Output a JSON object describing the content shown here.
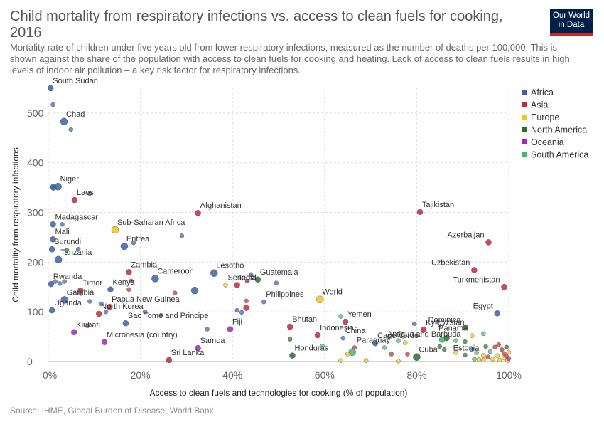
{
  "header": {
    "title": "Child mortality from respiratory infections vs. access to clean fuels for cooking, 2016",
    "subtitle": "Mortality rate of children under five years old from lower respiratory infections, measured as the number of deaths per 100,000. This is shown against the share of the population with access to clean fuels for cooking and heating. Lack of access to clean fuels results in high levels of indoor air pollution – a key risk factor for respiratory infections.",
    "logo_line1": "Our World",
    "logo_line2": "in Data"
  },
  "footer": {
    "source": "Source: IHME, Global Burden of Disease; World Bank"
  },
  "chart_data": {
    "type": "scatter",
    "title": "Child mortality from respiratory infections vs. access to clean fuels for cooking, 2016",
    "xlabel": "Access to clean fuels and technologies for cooking (% of population)",
    "ylabel": "Child mortality from respiratory infections",
    "xlim": [
      0,
      100
    ],
    "ylim": [
      0,
      550
    ],
    "x_ticks": [
      0,
      20,
      40,
      60,
      80,
      100
    ],
    "x_tick_labels": [
      "0%",
      "20%",
      "40%",
      "60%",
      "80%",
      "100%"
    ],
    "y_ticks": [
      0,
      100,
      200,
      300,
      400,
      500
    ],
    "y_tick_labels": [
      "0",
      "100",
      "200",
      "300",
      "400",
      "500"
    ],
    "grid": true,
    "legend_position": "right",
    "series": [
      {
        "name": "Africa",
        "color": "#3a62a8"
      },
      {
        "name": "Asia",
        "color": "#c7283a"
      },
      {
        "name": "Europe",
        "color": "#f4c514"
      },
      {
        "name": "North America",
        "color": "#2e6b2f"
      },
      {
        "name": "Oceania",
        "color": "#9b2ab5"
      },
      {
        "name": "South America",
        "color": "#3fba6d"
      }
    ],
    "points": [
      {
        "label": "South Sudan",
        "x": 0.5,
        "y": 550,
        "s": "Africa"
      },
      {
        "x": 1.0,
        "y": 517,
        "s": "Africa",
        "size": "sm"
      },
      {
        "label": "Chad",
        "x": 3.4,
        "y": 483,
        "s": "Africa",
        "size": "lg"
      },
      {
        "x": 4.9,
        "y": 467,
        "s": "Africa",
        "size": "sm"
      },
      {
        "label": "Niger",
        "x": 2.1,
        "y": 352,
        "s": "Africa",
        "size": "lg"
      },
      {
        "x": 1.1,
        "y": 350,
        "s": "Africa"
      },
      {
        "x": 1.0,
        "y": 353,
        "s": "Africa",
        "size": "sm"
      },
      {
        "x": 9.0,
        "y": 338,
        "s": "Africa",
        "size": "sm"
      },
      {
        "label": "Laos",
        "x": 5.7,
        "y": 325,
        "s": "Asia"
      },
      {
        "label": "Afghanistan",
        "x": 32.5,
        "y": 299,
        "s": "Asia"
      },
      {
        "label": "Tajikistan",
        "x": 80.7,
        "y": 301,
        "s": "Asia"
      },
      {
        "label": "Madagascar",
        "x": 1.0,
        "y": 276,
        "s": "Africa"
      },
      {
        "x": 3.0,
        "y": 276,
        "s": "Africa",
        "size": "sm"
      },
      {
        "label": "Sub-Saharan Africa",
        "x": 14.5,
        "y": 265,
        "s": "Europe",
        "size": "lg"
      },
      {
        "x": 29.0,
        "y": 253,
        "s": "Africa",
        "size": "sm"
      },
      {
        "label": "Mali",
        "x": 1.0,
        "y": 246,
        "s": "Africa"
      },
      {
        "label": "Azerbaijan",
        "x": 95.6,
        "y": 240,
        "s": "Asia"
      },
      {
        "label": "Eritrea",
        "x": 16.5,
        "y": 232,
        "s": "Africa",
        "size": "lg"
      },
      {
        "x": 18.5,
        "y": 239,
        "s": "Africa",
        "size": "sm"
      },
      {
        "label": "Burundi",
        "x": 0.8,
        "y": 226,
        "s": "Africa"
      },
      {
        "x": 4.0,
        "y": 224,
        "s": "North America",
        "size": "sm"
      },
      {
        "x": 6.5,
        "y": 226,
        "s": "Africa",
        "size": "sm"
      },
      {
        "label": "Tanzania",
        "x": 2.2,
        "y": 205,
        "s": "Africa",
        "size": "lg"
      },
      {
        "label": "Uzbekistan",
        "x": 92.5,
        "y": 184,
        "s": "Asia"
      },
      {
        "label": "Zambia",
        "x": 17.5,
        "y": 180,
        "s": "Asia"
      },
      {
        "label": "Cameroon",
        "x": 23.2,
        "y": 167,
        "s": "Africa",
        "size": "lg"
      },
      {
        "label": "Lesotho",
        "x": 36.0,
        "y": 178,
        "s": "Africa",
        "size": "lg"
      },
      {
        "label": "Rwanda",
        "x": 0.6,
        "y": 156,
        "s": "Africa"
      },
      {
        "x": 1.5,
        "y": 161,
        "s": "Africa",
        "size": "sm"
      },
      {
        "x": 2.5,
        "y": 157,
        "s": "Africa",
        "size": "sm"
      },
      {
        "x": 3.5,
        "y": 161,
        "s": "Africa",
        "size": "sm"
      },
      {
        "label": "Guatemala",
        "x": 45.5,
        "y": 165,
        "s": "North America"
      },
      {
        "x": 44.0,
        "y": 175,
        "s": "Africa",
        "size": "sm"
      },
      {
        "label": "India",
        "x": 41.0,
        "y": 154,
        "s": "Asia"
      },
      {
        "x": 43.2,
        "y": 162,
        "s": "Asia",
        "size": "sm"
      },
      {
        "x": 49.5,
        "y": 158,
        "s": "Africa",
        "size": "sm"
      },
      {
        "label": "Senegal",
        "x": 38.5,
        "y": 154,
        "s": "Europe",
        "size": "sm"
      },
      {
        "x": 18.0,
        "y": 162,
        "s": "Asia",
        "size": "sm"
      },
      {
        "x": 17.5,
        "y": 145,
        "s": "Asia",
        "size": "sm"
      },
      {
        "x": 27.5,
        "y": 138,
        "s": "Asia",
        "size": "sm"
      },
      {
        "x": 31.8,
        "y": 143,
        "s": "Africa",
        "size": "lg"
      },
      {
        "label": "Turkmenistan",
        "x": 99.0,
        "y": 150,
        "s": "Asia"
      },
      {
        "label": "Kenya",
        "x": 13.5,
        "y": 145,
        "s": "Africa"
      },
      {
        "label": "Timor",
        "x": 7.0,
        "y": 143,
        "s": "Asia"
      },
      {
        "x": 7.0,
        "y": 137,
        "s": "Africa",
        "size": "sm"
      },
      {
        "label": "Gambia",
        "x": 3.5,
        "y": 124,
        "s": "Africa",
        "size": "lg"
      },
      {
        "x": 9.0,
        "y": 121,
        "s": "Africa",
        "size": "sm"
      },
      {
        "x": 11.5,
        "y": 116,
        "s": "Africa",
        "size": "sm"
      },
      {
        "label": "Papua New Guinea",
        "x": 13.3,
        "y": 110,
        "s": "Asia"
      },
      {
        "label": "Philippines",
        "x": 46.8,
        "y": 120,
        "s": "Africa",
        "size": "sm"
      },
      {
        "x": 43.0,
        "y": 122,
        "s": "Asia",
        "size": "sm"
      },
      {
        "x": 43.0,
        "y": 108,
        "s": "Asia"
      },
      {
        "label": "World",
        "x": 59.0,
        "y": 125,
        "s": "Europe",
        "size": "lg"
      },
      {
        "label": "Uganda",
        "x": 0.8,
        "y": 103,
        "s": "Africa"
      },
      {
        "label": "North Korea",
        "x": 11.0,
        "y": 96,
        "s": "Asia"
      },
      {
        "x": 12.5,
        "y": 100,
        "s": "Africa",
        "size": "sm"
      },
      {
        "x": 21.0,
        "y": 100,
        "s": "Africa",
        "size": "sm"
      },
      {
        "x": 24.5,
        "y": 93,
        "s": "Africa",
        "size": "sm"
      },
      {
        "x": 41.0,
        "y": 103,
        "s": "Africa",
        "size": "sm"
      },
      {
        "x": 42.0,
        "y": 99,
        "s": "Africa",
        "size": "sm"
      },
      {
        "label": "Egypt",
        "x": 97.5,
        "y": 97,
        "s": "Africa"
      },
      {
        "label": "Yemen",
        "x": 64.5,
        "y": 80,
        "s": "Asia"
      },
      {
        "x": 63.5,
        "y": 91,
        "s": "South America",
        "size": "sm"
      },
      {
        "label": "Sao Tome and Principe",
        "x": 16.8,
        "y": 77,
        "s": "Africa"
      },
      {
        "x": 34.5,
        "y": 65,
        "s": "Africa",
        "size": "sm"
      },
      {
        "label": "Kiribati",
        "x": 5.6,
        "y": 59,
        "s": "Oceania"
      },
      {
        "x": 8.5,
        "y": 72,
        "s": "Oceania",
        "size": "sm"
      },
      {
        "label": "Fiji",
        "x": 39.5,
        "y": 65,
        "s": "Oceania"
      },
      {
        "label": "Bhutan",
        "x": 52.5,
        "y": 70,
        "s": "Asia"
      },
      {
        "label": "Indonesia",
        "x": 58.5,
        "y": 53,
        "s": "Asia"
      },
      {
        "label": "Kyrgyzstan",
        "x": 81.5,
        "y": 64,
        "s": "Asia"
      },
      {
        "label": "Dominica",
        "x": 90.5,
        "y": 69,
        "s": "North America"
      },
      {
        "x": 79.5,
        "y": 76,
        "s": "Africa",
        "size": "sm"
      },
      {
        "x": 84.5,
        "y": 80,
        "s": "Africa",
        "size": "sm"
      },
      {
        "label": "Micronesia (country)",
        "x": 12.2,
        "y": 39,
        "s": "Oceania"
      },
      {
        "label": "Panama",
        "x": 92.0,
        "y": 52,
        "s": "Europe",
        "size": "sm"
      },
      {
        "x": 94.5,
        "y": 56,
        "s": "South America",
        "size": "sm"
      },
      {
        "label": "Cape Verde",
        "x": 71.0,
        "y": 37,
        "s": "Africa"
      },
      {
        "x": 76.0,
        "y": 42,
        "s": "South America",
        "size": "sm"
      },
      {
        "x": 74.0,
        "y": 48,
        "s": "South America",
        "size": "sm"
      },
      {
        "x": 77.5,
        "y": 38,
        "s": "Europe",
        "size": "sm"
      },
      {
        "label": "Antigua and Barbuda",
        "x": 90.5,
        "y": 40,
        "s": "North America",
        "size": "sm"
      },
      {
        "x": 86.5,
        "y": 47,
        "s": "North America"
      },
      {
        "x": 85.5,
        "y": 44,
        "s": "South America"
      },
      {
        "x": 88.5,
        "y": 42,
        "s": "South America",
        "size": "sm"
      },
      {
        "label": "China",
        "x": 64.0,
        "y": 47,
        "s": "Africa",
        "size": "sm"
      },
      {
        "x": 52.5,
        "y": 45,
        "s": "North America",
        "size": "sm"
      },
      {
        "label": "Samoa",
        "x": 32.5,
        "y": 27,
        "s": "Oceania"
      },
      {
        "x": 59.5,
        "y": 31,
        "s": "South America",
        "size": "sm"
      },
      {
        "label": "Paraguay",
        "x": 66.5,
        "y": 28,
        "s": "Asia",
        "size": "sm"
      },
      {
        "x": 66.0,
        "y": 19,
        "s": "South America",
        "size": "lg"
      },
      {
        "x": 65.0,
        "y": 15,
        "s": "Europe",
        "size": "sm"
      },
      {
        "x": 73.0,
        "y": 28,
        "s": "South America",
        "size": "sm"
      },
      {
        "x": 74.5,
        "y": 15,
        "s": "Asia",
        "size": "sm"
      },
      {
        "x": 78.0,
        "y": 15,
        "s": "Asia",
        "size": "sm"
      },
      {
        "label": "Cuba",
        "x": 80.0,
        "y": 9,
        "s": "North America",
        "size": "lg"
      },
      {
        "label": "Honduras",
        "x": 53.0,
        "y": 12,
        "s": "North America"
      },
      {
        "label": "Sri Lanka",
        "x": 26.2,
        "y": 3,
        "s": "Asia"
      },
      {
        "x": 63.5,
        "y": 2,
        "s": "Europe",
        "size": "sm"
      },
      {
        "x": 69.0,
        "y": 2,
        "s": "Europe",
        "size": "sm"
      },
      {
        "x": 76.0,
        "y": 1,
        "s": "Europe",
        "size": "sm"
      },
      {
        "x": 85.0,
        "y": 30,
        "s": "North America",
        "size": "sm"
      },
      {
        "x": 86.0,
        "y": 24,
        "s": "North America",
        "size": "sm"
      },
      {
        "x": 88.5,
        "y": 18,
        "s": "Europe",
        "size": "sm"
      },
      {
        "x": 90.5,
        "y": 13,
        "s": "North America",
        "size": "sm"
      },
      {
        "x": 92.0,
        "y": 24,
        "s": "Africa",
        "size": "sm"
      },
      {
        "x": 93.0,
        "y": 18,
        "s": "South America",
        "size": "sm"
      },
      {
        "label": "Estonia",
        "x": 94.5,
        "y": 12,
        "s": "Europe",
        "size": "sm"
      },
      {
        "x": 92.5,
        "y": 5,
        "s": "South America",
        "size": "sm"
      },
      {
        "x": 93.5,
        "y": 4,
        "s": "Europe",
        "size": "sm"
      },
      {
        "x": 94.5,
        "y": 3,
        "s": "Europe",
        "size": "sm"
      },
      {
        "x": 95.5,
        "y": 9,
        "s": "Asia",
        "size": "sm"
      },
      {
        "x": 96.0,
        "y": 20,
        "s": "South America",
        "size": "sm"
      },
      {
        "x": 96.5,
        "y": 5,
        "s": "Europe",
        "size": "sm"
      },
      {
        "x": 97.0,
        "y": 29,
        "s": "Asia",
        "size": "sm"
      },
      {
        "x": 97.5,
        "y": 12,
        "s": "Europe",
        "size": "sm"
      },
      {
        "x": 98.0,
        "y": 3,
        "s": "Europe",
        "size": "sm"
      },
      {
        "x": 98.5,
        "y": 24,
        "s": "Asia",
        "size": "sm"
      },
      {
        "x": 99.0,
        "y": 16,
        "s": "Asia",
        "size": "sm"
      },
      {
        "x": 99.0,
        "y": 7,
        "s": "Europe",
        "size": "sm"
      },
      {
        "x": 99.5,
        "y": 29,
        "s": "North America",
        "size": "sm"
      },
      {
        "x": 99.5,
        "y": 11,
        "s": "Asia",
        "size": "sm"
      },
      {
        "x": 99.8,
        "y": 2,
        "s": "Europe",
        "size": "sm"
      },
      {
        "x": 100.0,
        "y": 19,
        "s": "Europe",
        "size": "sm"
      },
      {
        "x": 100.0,
        "y": 6,
        "s": "Oceania",
        "size": "sm"
      },
      {
        "x": 95.0,
        "y": 30,
        "s": "North America",
        "size": "sm"
      },
      {
        "x": 97.8,
        "y": 34,
        "s": "Asia",
        "size": "sm"
      }
    ]
  }
}
